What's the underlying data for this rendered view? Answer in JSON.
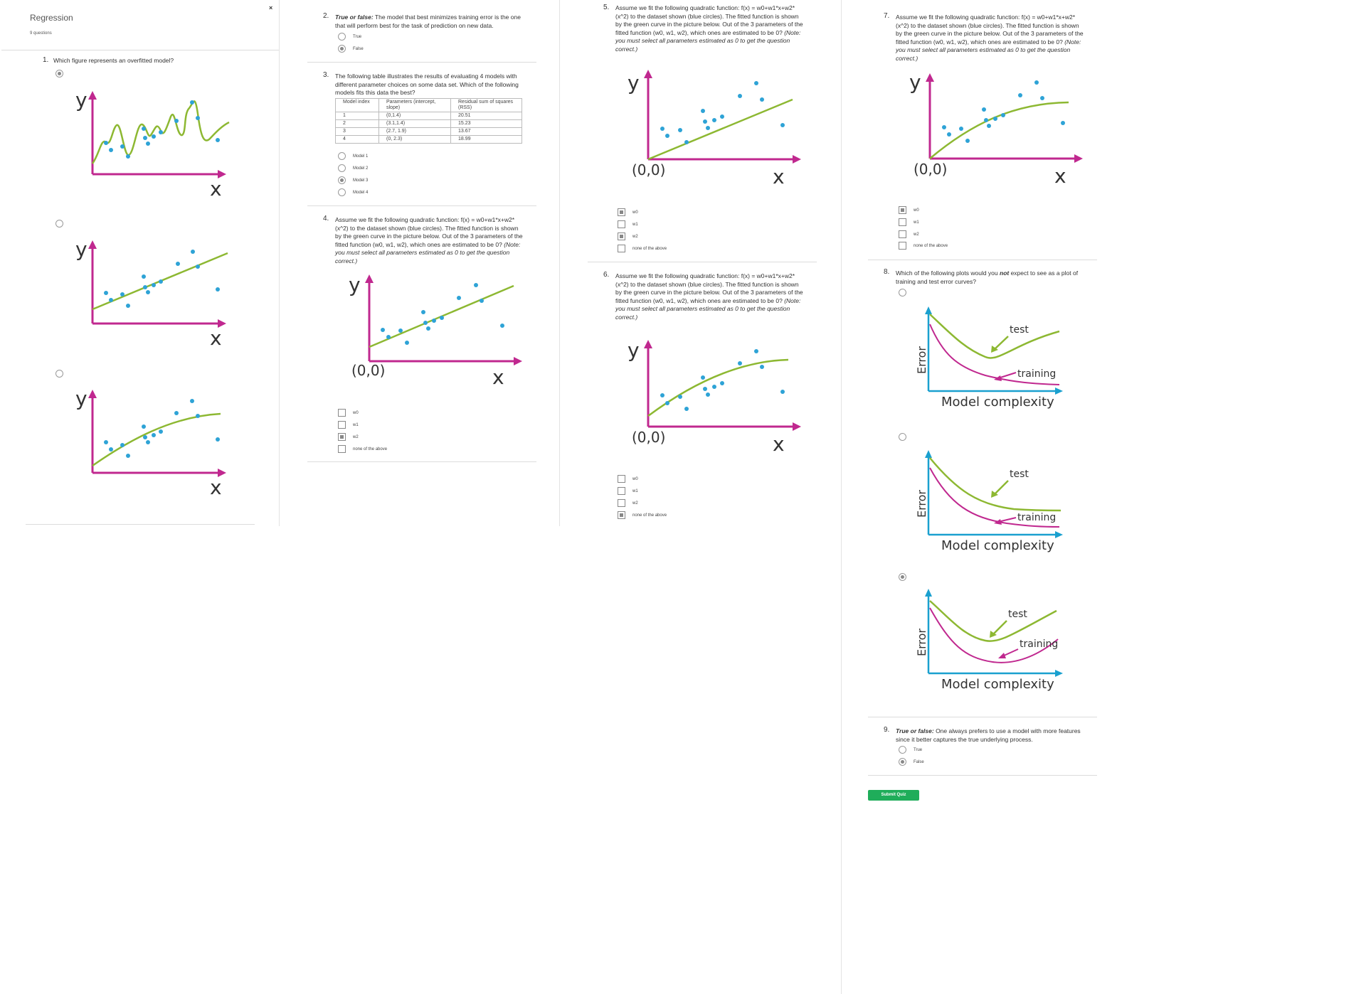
{
  "quiz": {
    "title": "Regression",
    "subtitle": "9 questions",
    "close": "×"
  },
  "q1": {
    "num": "1.",
    "text": "Which figure represents an overfitted model?",
    "plot_labels": {
      "y": "y",
      "x": "x"
    }
  },
  "q2": {
    "num": "2.",
    "lead": "True or false:",
    "text": " The model that best minimizes training error is the one that will perform best for the task of prediction on new data.",
    "options": [
      "True",
      "False"
    ]
  },
  "q3": {
    "num": "3.",
    "text": "The following table illustrates the results of evaluating 4 models with different parameter choices on some data set. Which of the following models fits this data the best?",
    "table": {
      "headers": [
        "Model index",
        "Parameters (intercept, slope)",
        "Residual sum of squares (RSS)"
      ],
      "rows": [
        [
          "1",
          "(0,1.4)",
          "20.51"
        ],
        [
          "2",
          "(3.1,1.4)",
          "15.23"
        ],
        [
          "3",
          "(2.7, 1.9)",
          "13.67"
        ],
        [
          "4",
          "(0, 2.3)",
          "18.99"
        ]
      ]
    },
    "options": [
      "Model 1",
      "Model 2",
      "Model 3",
      "Model 4"
    ]
  },
  "quad_question": {
    "text": "Assume we fit the following quadratic function: f(x) = w0+w1*x+w2*(x^2) to the dataset shown (blue circles). The fitted function is shown by the green curve in the picture below. Out of the 3 parameters of the fitted function (w0, w1, w2), which ones are estimated to be 0?",
    "note": "(Note: you must select all parameters estimated as 0 to get the question correct.)",
    "options": [
      "w0",
      "w1",
      "w2",
      "none of the above"
    ],
    "origin": "(0,0)"
  },
  "q4": {
    "num": "4."
  },
  "q5": {
    "num": "5."
  },
  "q6": {
    "num": "6."
  },
  "q7": {
    "num": "7."
  },
  "q8": {
    "num": "8.",
    "text_a": "Which of the following plots would you ",
    "text_b": "not",
    "text_c": " expect to see as a plot of training and test error curves?",
    "labels": {
      "error": "Error",
      "complexity": "Model complexity",
      "test": "test",
      "training": "training"
    }
  },
  "q9": {
    "num": "9.",
    "lead": "True or false:",
    "text": " One always prefers to use a model with more features since it better captures the true underlying process.",
    "options": [
      "True",
      "False"
    ]
  },
  "submit_label": "Submit Quiz",
  "colors": {
    "axis": "#c0288f",
    "fit": "#8db832",
    "point": "#2ea3d6",
    "err_axis": "#1aa0cf",
    "test": "#8db832",
    "training": "#c0288f",
    "submit": "#1fad5a"
  }
}
